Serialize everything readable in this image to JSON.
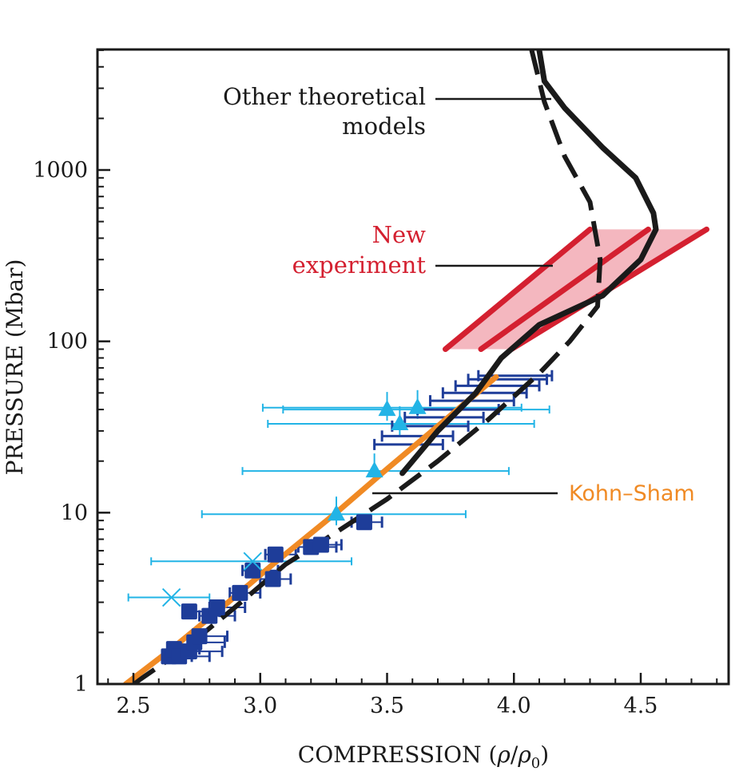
{
  "chart_data": {
    "type": "scatter",
    "x_axis": {
      "label_prefix": "COMPRESSION (",
      "label_rho": "ρ",
      "label_slash": "/",
      "label_sub": "0",
      "label_suffix": ")",
      "range": [
        2.4,
        4.85
      ],
      "scale": "linear",
      "tick_values": [
        2.5,
        3.0,
        3.5,
        4.0,
        4.5
      ],
      "tick_labels": [
        "2.5",
        "3.0",
        "3.5",
        "4.0",
        "4.5"
      ]
    },
    "y_axis": {
      "label": "PRESSURE (Mbar)",
      "range": [
        1,
        5000
      ],
      "scale": "log",
      "tick_values": [
        1,
        10,
        100,
        1000
      ],
      "tick_labels": [
        "1",
        "10",
        "100",
        "1000"
      ]
    },
    "annotations": {
      "other_models_line1": "Other theoretical",
      "other_models_line2": "models",
      "new_experiment_line1": "New",
      "new_experiment_line2": "experiment",
      "kohn_sham": "Kohn–Sham"
    },
    "colors": {
      "axes": "#1a1a1a",
      "experiment": "#d42030",
      "experiment_fill": "#f2aab4",
      "kohn_sham": "#f08a24",
      "dark_squares": "#1e3d99",
      "triangles": "#22b4e6",
      "theory": "#1a1a1a"
    },
    "series": [
      {
        "name": "Kohn–Sham",
        "style": "solid-orange",
        "points": [
          [
            2.47,
            1.0
          ],
          [
            2.65,
            1.6
          ],
          [
            2.85,
            2.8
          ],
          [
            3.05,
            5.0
          ],
          [
            3.3,
            10
          ],
          [
            3.5,
            18
          ],
          [
            3.7,
            32
          ],
          [
            3.93,
            62
          ]
        ]
      },
      {
        "name": "Other theoretical models (solid)",
        "style": "solid-black",
        "points": [
          [
            3.56,
            17
          ],
          [
            3.7,
            30
          ],
          [
            3.85,
            50
          ],
          [
            3.95,
            80
          ],
          [
            4.1,
            125
          ],
          [
            4.35,
            185
          ],
          [
            4.5,
            300
          ],
          [
            4.56,
            450
          ],
          [
            4.55,
            560
          ],
          [
            4.48,
            900
          ],
          [
            4.35,
            1350
          ],
          [
            4.2,
            2300
          ],
          [
            4.12,
            3300
          ],
          [
            4.1,
            5000
          ]
        ]
      },
      {
        "name": "Other theoretical models (dashed)",
        "style": "dashed-black",
        "points": [
          [
            2.5,
            1.0
          ],
          [
            2.7,
            1.6
          ],
          [
            2.9,
            2.8
          ],
          [
            3.1,
            5.0
          ],
          [
            3.3,
            7.7
          ],
          [
            3.5,
            12
          ],
          [
            3.7,
            20
          ],
          [
            3.9,
            35
          ],
          [
            4.1,
            65
          ],
          [
            4.22,
            100
          ],
          [
            4.33,
            160
          ],
          [
            4.34,
            300
          ],
          [
            4.3,
            650
          ],
          [
            4.2,
            1200
          ],
          [
            4.12,
            2500
          ],
          [
            4.07,
            5000
          ]
        ]
      },
      {
        "name": "New experiment",
        "style": "band-red",
        "bands": [
          [
            [
              3.73,
              90
            ],
            [
              4.3,
              450
            ]
          ],
          [
            [
              3.87,
              90
            ],
            [
              4.53,
              450
            ]
          ],
          [
            [
              3.99,
              90
            ],
            [
              4.76,
              450
            ]
          ]
        ]
      },
      {
        "name": "Dark squares",
        "style": "square",
        "points": [
          [
            2.64,
            1.45
          ],
          [
            2.66,
            1.6
          ],
          [
            2.68,
            1.45
          ],
          [
            2.72,
            1.55
          ],
          [
            2.74,
            1.75
          ],
          [
            2.76,
            1.9
          ],
          [
            2.72,
            2.65
          ],
          [
            2.8,
            2.5
          ],
          [
            2.83,
            2.8
          ],
          [
            2.92,
            3.4
          ],
          [
            2.97,
            4.6
          ],
          [
            3.05,
            4.1
          ],
          [
            3.06,
            5.7
          ],
          [
            3.2,
            6.3
          ],
          [
            3.24,
            6.5
          ],
          [
            3.41,
            8.8
          ]
        ],
        "x_err": [
          [
            2.63,
            2.73
          ],
          [
            2.64,
            2.76
          ],
          [
            2.66,
            2.8
          ],
          [
            2.7,
            2.85
          ],
          [
            2.73,
            2.86
          ],
          [
            2.74,
            2.87
          ],
          [
            2.7,
            2.84
          ],
          [
            2.76,
            2.9
          ],
          [
            2.8,
            2.94
          ],
          [
            2.88,
            3.0
          ],
          [
            2.93,
            3.07
          ],
          [
            3.0,
            3.12
          ],
          [
            3.02,
            3.14
          ],
          [
            3.15,
            3.3
          ],
          [
            3.18,
            3.32
          ],
          [
            3.36,
            3.48
          ]
        ]
      },
      {
        "name": "Dark squares with error bars (high pressure)",
        "style": "error-only",
        "points": [
          [
            3.5,
            25
          ],
          [
            3.55,
            28
          ],
          [
            3.6,
            32
          ],
          [
            3.66,
            36
          ],
          [
            3.72,
            40
          ],
          [
            3.78,
            45
          ],
          [
            3.84,
            50
          ],
          [
            3.9,
            55
          ],
          [
            3.95,
            60
          ],
          [
            4.0,
            63
          ]
        ],
        "x_err": [
          [
            3.45,
            3.72
          ],
          [
            3.48,
            3.76
          ],
          [
            3.52,
            3.82
          ],
          [
            3.57,
            3.88
          ],
          [
            3.62,
            3.94
          ],
          [
            3.67,
            4.0
          ],
          [
            3.72,
            4.05
          ],
          [
            3.77,
            4.1
          ],
          [
            3.82,
            4.13
          ],
          [
            3.86,
            4.15
          ]
        ]
      },
      {
        "name": "Light triangles",
        "style": "triangle",
        "points": [
          [
            3.3,
            9.8
          ],
          [
            3.45,
            17.5
          ],
          [
            3.5,
            40
          ],
          [
            3.55,
            33
          ],
          [
            3.62,
            41
          ]
        ],
        "x_err": [
          [
            2.77,
            3.81
          ],
          [
            2.93,
            3.98
          ],
          [
            3.09,
            4.14
          ],
          [
            3.03,
            4.08
          ],
          [
            3.01,
            4.03
          ]
        ]
      },
      {
        "name": "Light crosses",
        "style": "cross",
        "points": [
          [
            2.65,
            3.2
          ],
          [
            2.97,
            5.2
          ]
        ],
        "x_err": [
          [
            2.48,
            2.8
          ],
          [
            2.57,
            3.36
          ]
        ]
      }
    ]
  }
}
